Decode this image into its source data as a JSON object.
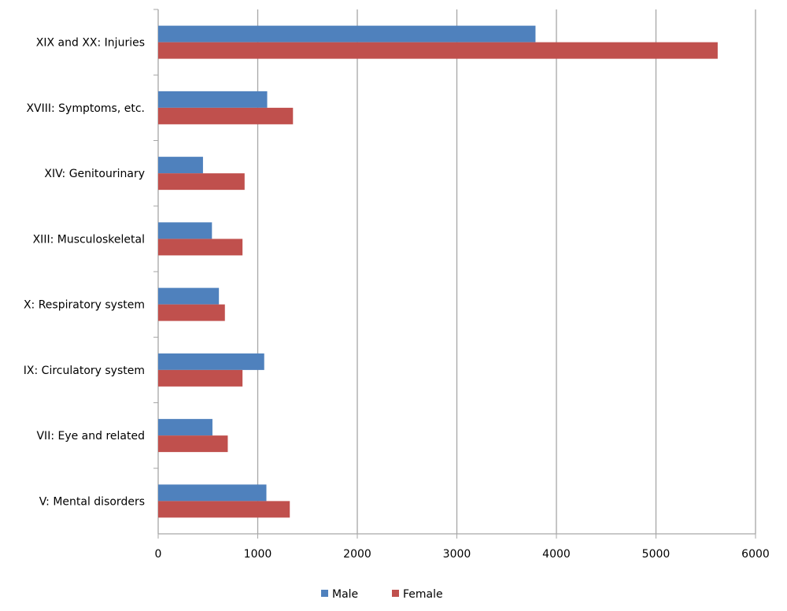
{
  "chart_data": {
    "type": "bar",
    "orientation": "horizontal",
    "categories": [
      "XIX and XX: Injuries",
      "XVIII: Symptoms, etc.",
      "XIV: Genitourinary",
      "XIII: Musculoskeletal",
      "X: Respiratory system",
      "IX: Circulatory system",
      "VII: Eye and related",
      "V: Mental disorders"
    ],
    "series": [
      {
        "name": "Male",
        "color": "#4F81BD",
        "values": [
          3790,
          1095,
          450,
          540,
          610,
          1065,
          545,
          1087
        ]
      },
      {
        "name": "Female",
        "color": "#C0504D",
        "values": [
          5620,
          1354,
          868,
          847,
          670,
          847,
          699,
          1322
        ]
      }
    ],
    "xlim": [
      0,
      6000
    ],
    "xticks": [
      "0",
      "1000",
      "2000",
      "3000",
      "4000",
      "5000",
      "6000"
    ],
    "grid": "vertical",
    "legend": "bottom"
  }
}
